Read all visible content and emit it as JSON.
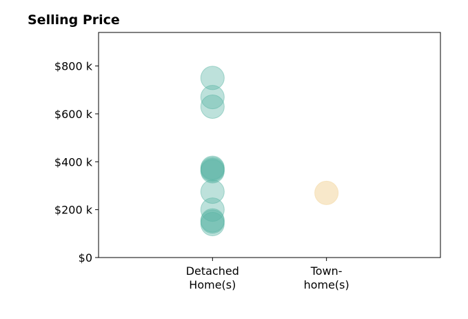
{
  "chart_data": {
    "type": "scatter",
    "title": "Selling Price",
    "xlabel": "",
    "ylabel": "",
    "categories": [
      [
        "Detached",
        "Home(s)"
      ],
      [
        "Town-",
        "home(s)"
      ]
    ],
    "yticks": [
      {
        "value": 0,
        "label": "$0"
      },
      {
        "value": 200000,
        "label": "$200 k"
      },
      {
        "value": 400000,
        "label": "$400 k"
      },
      {
        "value": 600000,
        "label": "$600 k"
      },
      {
        "value": 800000,
        "label": "$800 k"
      }
    ],
    "xlim": [
      -1,
      2
    ],
    "ylim": [
      0,
      940000
    ],
    "grid": false,
    "series": [
      {
        "color": "#5ab5a4",
        "opacity": 0.4,
        "points": [
          {
            "x": 0,
            "y": 750000
          },
          {
            "x": 0,
            "y": 670000
          },
          {
            "x": 0,
            "y": 630000
          },
          {
            "x": 0,
            "y": 375000
          },
          {
            "x": 0,
            "y": 370000
          },
          {
            "x": 0,
            "y": 365000
          },
          {
            "x": 0,
            "y": 360000
          },
          {
            "x": 0,
            "y": 275000
          },
          {
            "x": 0,
            "y": 200000
          },
          {
            "x": 0,
            "y": 155000
          },
          {
            "x": 0,
            "y": 150000
          },
          {
            "x": 0,
            "y": 140000
          }
        ]
      },
      {
        "color": "#f5deb3",
        "opacity": 0.7,
        "points": [
          {
            "x": 1,
            "y": 270000
          }
        ]
      }
    ]
  }
}
